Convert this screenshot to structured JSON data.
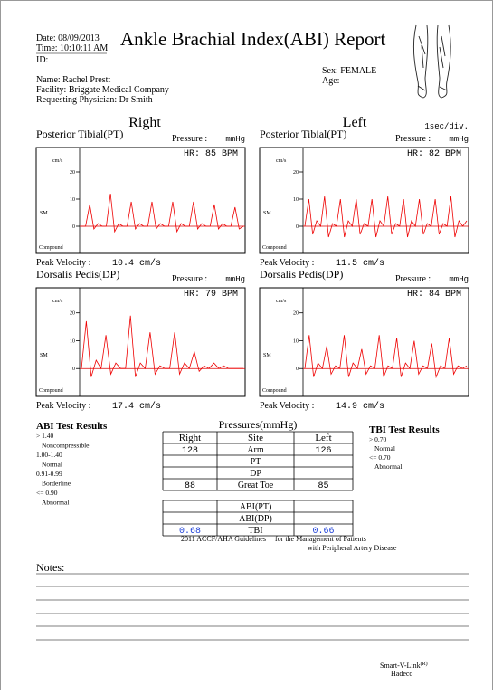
{
  "header": {
    "date": "Date: 08/09/2013",
    "time": "Time: 10:10:11 AM",
    "title": "Ankle Brachial Index(ABI) Report",
    "id": "ID:",
    "name": "Name: Rachel Prestt",
    "facility": "Facility: Briggate Medical Company",
    "physician": "Requesting Physician: Dr Smith",
    "sex": "Sex: FEMALE",
    "age": "Age:"
  },
  "sides": {
    "right": "Right",
    "left": "Left",
    "time_scale": "1sec/div."
  },
  "panels": [
    {
      "title": "Posterior Tibial(PT)",
      "pressure_label": "Pressure :",
      "pressure_unit": "mmHg",
      "hr": "HR: 85 BPM",
      "y_unit": "cm/s",
      "sm": "SM",
      "compound": "Compound",
      "ylim": [
        -10,
        29
      ],
      "yticks": [
        0,
        10,
        20
      ],
      "waveform": [
        0,
        0,
        8,
        -1,
        1,
        0,
        0,
        12,
        -2,
        1,
        0,
        0,
        9,
        -1,
        1,
        0,
        0,
        9,
        -1,
        1,
        0,
        0,
        9,
        -2,
        1,
        0,
        0,
        9,
        -1,
        1,
        0,
        0,
        8,
        -1,
        1,
        0,
        0,
        7,
        -1,
        0
      ],
      "peak_label": "Peak Velocity :",
      "peak_value": "10.4 cm/s"
    },
    {
      "title": "Posterior Tibial(PT)",
      "pressure_label": "Pressure :",
      "pressure_unit": "mmHg",
      "hr": "HR: 82 BPM",
      "y_unit": "cm/s",
      "sm": "SM",
      "compound": "Compound",
      "ylim": [
        -10,
        29
      ],
      "yticks": [
        0,
        10,
        20
      ],
      "waveform": [
        0,
        10,
        -3,
        2,
        0,
        11,
        -4,
        1,
        0,
        10,
        -4,
        2,
        0,
        10,
        -3,
        1,
        0,
        10,
        -4,
        2,
        0,
        11,
        -3,
        1,
        0,
        10,
        -4,
        2,
        0,
        10,
        -3,
        1,
        0,
        10,
        -3,
        1,
        0,
        11,
        -4,
        2,
        0,
        2
      ],
      "peak_label": "Peak Velocity :",
      "peak_value": "11.5 cm/s"
    },
    {
      "title": "Dorsalis Pedis(DP)",
      "pressure_label": "Pressure :",
      "pressure_unit": "mmHg",
      "hr": "HR: 79 BPM",
      "y_unit": "cm/s",
      "sm": "SM",
      "compound": "Compound",
      "ylim": [
        -10,
        29
      ],
      "yticks": [
        0,
        10,
        20
      ],
      "waveform": [
        0,
        17,
        -3,
        3,
        0,
        12,
        -2,
        2,
        0,
        0,
        19,
        -3,
        2,
        0,
        13,
        -2,
        1,
        0,
        0,
        13,
        -2,
        2,
        0,
        6,
        -1,
        1,
        0,
        2,
        0,
        1,
        0,
        0,
        0,
        0
      ],
      "peak_label": "Peak Velocity :",
      "peak_value": "17.4 cm/s"
    },
    {
      "title": "Dorsalis Pedis(DP)",
      "pressure_label": "Pressure :",
      "pressure_unit": "mmHg",
      "hr": "HR: 84 BPM",
      "y_unit": "cm/s",
      "sm": "SM",
      "compound": "Compound",
      "ylim": [
        -10,
        29
      ],
      "yticks": [
        0,
        10,
        20
      ],
      "waveform": [
        0,
        12,
        -3,
        2,
        0,
        8,
        -2,
        1,
        0,
        12,
        -3,
        2,
        0,
        7,
        -2,
        1,
        0,
        12,
        -3,
        1,
        0,
        11,
        -3,
        2,
        0,
        10,
        -2,
        1,
        0,
        9,
        -3,
        1,
        0,
        11,
        -2,
        1,
        0,
        1
      ],
      "peak_label": "Peak Velocity :",
      "peak_value": "14.9 cm/s"
    }
  ],
  "abi_results": {
    "title": "ABI Test Results",
    "items": [
      "> 1.40",
      "Noncompressible",
      "1.00-1.40",
      "Normal",
      "0.91-0.99",
      "Borderline",
      "<= 0.90",
      "Abnormal"
    ]
  },
  "tbi_results": {
    "title": "TBI Test Results",
    "items": [
      "> 0.70",
      "Normal",
      "<= 0.70",
      "Abnormal"
    ]
  },
  "pressures": {
    "title": "Pressures(mmHg)",
    "header": [
      "Right",
      "Site",
      "Left"
    ],
    "rows": [
      [
        "128",
        "Arm",
        "126"
      ],
      [
        null,
        "PT",
        null
      ],
      [
        null,
        "DP",
        null
      ],
      [
        "88",
        "Great Toe",
        "85"
      ],
      [
        null,
        "ABI(PT)",
        null
      ],
      [
        null,
        "ABI(DP)",
        null
      ],
      [
        "0.68",
        "TBI",
        "0.66"
      ]
    ]
  },
  "guidelines": {
    "source": "2011 ACCF/AHA Guidelines",
    "line1": "for the Management of Patients",
    "line2": "with Peripheral Artery Disease"
  },
  "notes": "Notes:",
  "footer": {
    "brand": "Smart-V-Link",
    "mark": "(R)",
    "company": "Hadeco"
  }
}
